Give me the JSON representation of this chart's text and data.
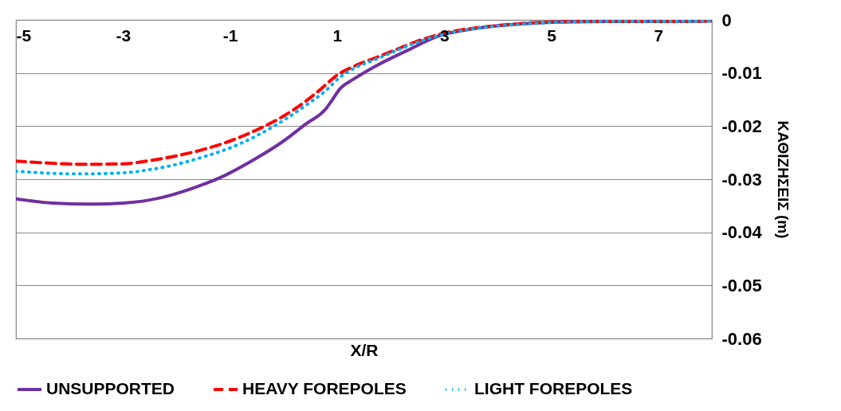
{
  "chart_data": {
    "type": "line",
    "xlabel": "X/R",
    "ylabel": "ΚΑΘΙΖΗΣΕΙΣ (m)",
    "xlim": [
      -5,
      8
    ],
    "xticks": [
      -5,
      -3,
      -1,
      1,
      3,
      5,
      7
    ],
    "ylim": [
      -0.06,
      0
    ],
    "yticks": [
      0,
      -0.01,
      -0.02,
      -0.03,
      -0.04,
      -0.05,
      -0.06
    ],
    "grid": "y",
    "legend": "bottom",
    "series": [
      {
        "name": "UNSUPPORTED",
        "color": "#7030a0",
        "line_style": "solid",
        "x": [
          -5,
          -4.3,
          -3.6,
          -3,
          -2.3,
          -1.7,
          -1.1,
          -0.5,
          0,
          0.4,
          0.8,
          0.9,
          1.05,
          1.3,
          1.7,
          2.3,
          2.9,
          3.4,
          3.9,
          4.5,
          5.1,
          6,
          7,
          8
        ],
        "values": [
          -0.0337,
          -0.0345,
          -0.0347,
          -0.0345,
          -0.0335,
          -0.0317,
          -0.0293,
          -0.026,
          -0.0228,
          -0.0197,
          -0.0166,
          -0.0152,
          -0.013,
          -0.0112,
          -0.0088,
          -0.0058,
          -0.003,
          -0.0019,
          -0.0012,
          -0.0007,
          -0.0004,
          -0.0003,
          -0.0003,
          -0.0002
        ]
      },
      {
        "name": "HEAVY FOREPOLES",
        "color": "#ff0000",
        "line_style": "dashed",
        "x": [
          -5,
          -4.3,
          -3.8,
          -3,
          -2.5,
          -2,
          -1.5,
          -1,
          -0.5,
          0,
          0.4,
          0.7,
          1,
          1.3,
          1.7,
          2.1,
          2.5,
          3,
          3.6,
          4.3,
          5,
          6,
          7,
          8
        ],
        "values": [
          -0.0266,
          -0.027,
          -0.0272,
          -0.0271,
          -0.0265,
          -0.0256,
          -0.0244,
          -0.0228,
          -0.0207,
          -0.0181,
          -0.0154,
          -0.013,
          -0.0104,
          -0.0088,
          -0.0072,
          -0.0056,
          -0.004,
          -0.0025,
          -0.0015,
          -0.0008,
          -0.0004,
          -0.0003,
          -0.0003,
          -0.0002
        ]
      },
      {
        "name": "LIGHT FOREPOLES",
        "color": "#00b0f0",
        "line_style": "dotted",
        "x": [
          -5,
          -4.3,
          -3.8,
          -3,
          -2.5,
          -2,
          -1.5,
          -1,
          -0.5,
          0,
          0.4,
          0.8,
          1.05,
          1.3,
          1.7,
          2.1,
          2.5,
          3,
          3.6,
          4.3,
          5,
          6,
          7,
          8
        ],
        "values": [
          -0.0285,
          -0.0289,
          -0.029,
          -0.0288,
          -0.0282,
          -0.0272,
          -0.0258,
          -0.0241,
          -0.0218,
          -0.0189,
          -0.0162,
          -0.0132,
          -0.0108,
          -0.0092,
          -0.0075,
          -0.0058,
          -0.0042,
          -0.0027,
          -0.0016,
          -0.0009,
          -0.0005,
          -0.0003,
          -0.0003,
          -0.0002
        ]
      }
    ]
  }
}
